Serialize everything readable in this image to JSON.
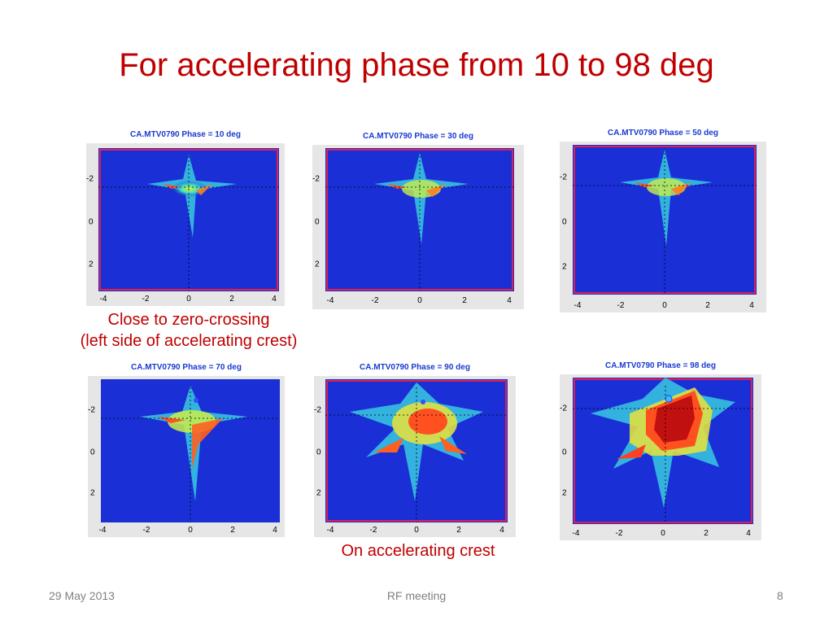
{
  "slide": {
    "title": "For accelerating phase from 10 to 98 deg",
    "captions": {
      "zero_crossing_line1": "Close to zero-crossing",
      "zero_crossing_line2": "(left side of accelerating crest)",
      "crest": "On accelerating crest"
    },
    "footer": {
      "date": "29 May 2013",
      "center": "RF meeting",
      "page": "8"
    }
  },
  "colors": {
    "title": "#c00000",
    "plot_title": "#1a3ad0",
    "background_plot": "#1a2fd6",
    "frame": "#e0204a"
  },
  "plots": [
    {
      "title": "CA.MTV0790 Phase = 10 deg",
      "x_ticks": [
        "-4",
        "-2",
        "0",
        "2",
        "4"
      ],
      "y_ticks": [
        "-2",
        "0",
        "2"
      ],
      "intensity": "low"
    },
    {
      "title": "CA.MTV0790 Phase = 30 deg",
      "x_ticks": [
        "-4",
        "-2",
        "0",
        "2",
        "4"
      ],
      "y_ticks": [
        "-2",
        "0",
        "2"
      ],
      "intensity": "low"
    },
    {
      "title": "CA.MTV0790 Phase = 50 deg",
      "x_ticks": [
        "-4",
        "-2",
        "0",
        "2",
        "4"
      ],
      "y_ticks": [
        "-2",
        "0",
        "2"
      ],
      "intensity": "low"
    },
    {
      "title": "CA.MTV0790 Phase = 70 deg",
      "x_ticks": [
        "-4",
        "-2",
        "0",
        "2",
        "4"
      ],
      "y_ticks": [
        "-2",
        "0",
        "2"
      ],
      "intensity": "medium"
    },
    {
      "title": "CA.MTV0790 Phase = 90 deg",
      "x_ticks": [
        "-4",
        "-2",
        "0",
        "2",
        "4"
      ],
      "y_ticks": [
        "-2",
        "0",
        "2"
      ],
      "intensity": "high"
    },
    {
      "title": "CA.MTV0790 Phase = 98 deg",
      "x_ticks": [
        "-4",
        "-2",
        "0",
        "2",
        "4"
      ],
      "y_ticks": [
        "-2",
        "0",
        "2"
      ],
      "intensity": "very-high"
    }
  ]
}
